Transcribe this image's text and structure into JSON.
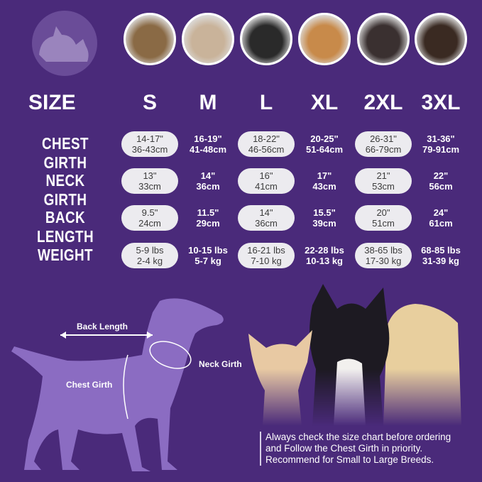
{
  "header": {
    "size_label": "SIZE",
    "sizes": [
      "S",
      "M",
      "L",
      "XL",
      "2XL",
      "3XL"
    ]
  },
  "photos": [
    "yorkshire-terrier",
    "shih-tzu",
    "boston-terrier",
    "beagle",
    "border-collie",
    "doberman"
  ],
  "rows": [
    {
      "label": "CHEST GIRTH",
      "values": [
        [
          "14-17\"",
          "36-43cm"
        ],
        [
          "16-19\"",
          "41-48cm"
        ],
        [
          "18-22\"",
          "46-56cm"
        ],
        [
          "20-25\"",
          "51-64cm"
        ],
        [
          "26-31\"",
          "66-79cm"
        ],
        [
          "31-36\"",
          "79-91cm"
        ]
      ]
    },
    {
      "label": "NECK GIRTH",
      "values": [
        [
          "13\"",
          "33cm"
        ],
        [
          "14\"",
          "36cm"
        ],
        [
          "16\"",
          "41cm"
        ],
        [
          "17\"",
          "43cm"
        ],
        [
          "21\"",
          "53cm"
        ],
        [
          "22\"",
          "56cm"
        ]
      ]
    },
    {
      "label": "BACK LENGTH",
      "values": [
        [
          "9.5\"",
          "24cm"
        ],
        [
          "11.5\"",
          "29cm"
        ],
        [
          "14\"",
          "36cm"
        ],
        [
          "15.5\"",
          "39cm"
        ],
        [
          "20\"",
          "51cm"
        ],
        [
          "24\"",
          "61cm"
        ]
      ]
    },
    {
      "label": "WEIGHT",
      "values": [
        [
          "5-9 lbs",
          "2-4 kg"
        ],
        [
          "10-15 lbs",
          "5-7 kg"
        ],
        [
          "16-21 lbs",
          "7-10 kg"
        ],
        [
          "22-28 lbs",
          "10-13 kg"
        ],
        [
          "38-65 lbs",
          "17-30 kg"
        ],
        [
          "68-85 lbs",
          "31-39 kg"
        ]
      ]
    }
  ],
  "diagram": {
    "back_length": "Back Length",
    "neck_girth": "Neck Girth",
    "chest_girth": "Chest Girth"
  },
  "note": [
    "Always check the size chart before ordering",
    "and Follow the Chest Girth in priority.",
    "Recommend for Small to Large Breeds."
  ],
  "colors": {
    "background": "#4a2a7a",
    "pill": "#ecebef",
    "silhouette": "#8b6cc2"
  }
}
